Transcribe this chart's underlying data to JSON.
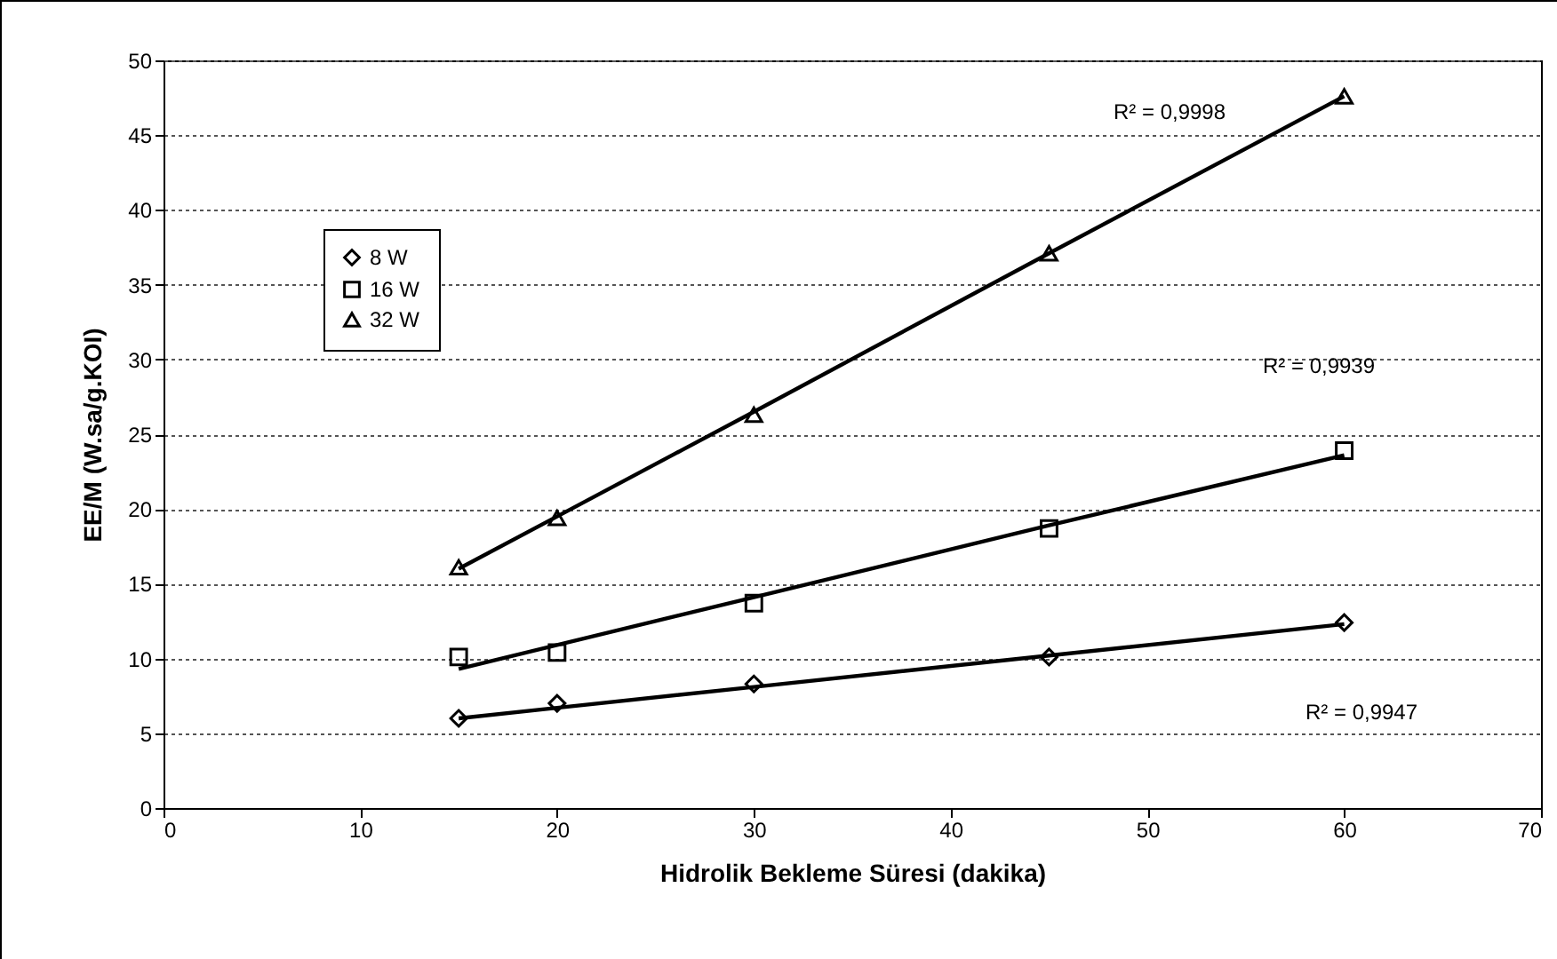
{
  "chart_data": {
    "type": "scatter",
    "xlabel": "Hidrolik Bekleme Süresi (dakika)",
    "ylabel": "EE/M (W.sa/g.KOI)",
    "x": [
      15,
      20,
      30,
      45,
      60
    ],
    "series": [
      {
        "name": "8 W",
        "color": "#000000",
        "marker": "diamond",
        "values": [
          6.0,
          7.0,
          8.3,
          10.1,
          12.4
        ]
      },
      {
        "name": "16 W",
        "color": "#000000",
        "marker": "square",
        "values": [
          10.1,
          10.4,
          13.7,
          18.7,
          23.9
        ]
      },
      {
        "name": "32 W",
        "color": "#000000",
        "marker": "triangle",
        "values": [
          16.1,
          19.4,
          26.3,
          37.1,
          47.6
        ]
      },
      {
        "type": "line",
        "color": "#000000",
        "values": [
          6.0,
          6.7,
          8.1,
          10.2,
          12.3
        ]
      },
      {
        "type": "line",
        "color": "#000000",
        "values": [
          9.3,
          10.9,
          14.1,
          18.9,
          23.6
        ]
      },
      {
        "type": "line",
        "color": "#000000",
        "values": [
          16.0,
          19.5,
          26.5,
          37.1,
          47.6
        ]
      }
    ],
    "xlim": [
      0,
      70
    ],
    "xticks": [
      0,
      10,
      20,
      30,
      40,
      50,
      60,
      70
    ],
    "ylim": [
      0,
      50
    ],
    "yticks": [
      0,
      5,
      10,
      15,
      20,
      25,
      30,
      35,
      40,
      45,
      50
    ],
    "grid": "y",
    "legend": "top left",
    "annotations": [
      "R² = 0,9998",
      "R² = 0,9939",
      "R² = 0,9947"
    ]
  }
}
